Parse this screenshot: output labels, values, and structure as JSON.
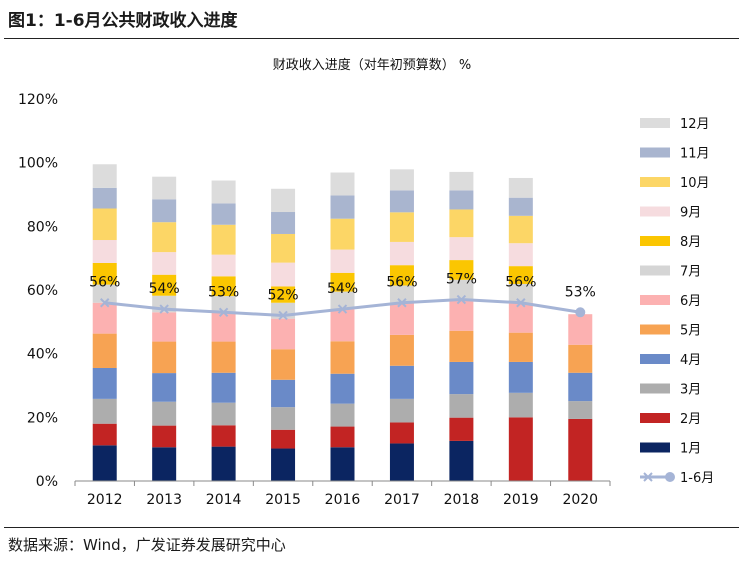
{
  "figure_title": "图1：1-6月公共财政收入进度",
  "source_note": "数据来源：Wind，广发证券发展研究中心",
  "chart_data": {
    "type": "bar",
    "stacked": true,
    "title": "财政收入进度（对年初预算数） %",
    "categories": [
      "2012",
      "2013",
      "2014",
      "2015",
      "2016",
      "2017",
      "2018",
      "2019",
      "2020"
    ],
    "ylim": [
      0,
      120
    ],
    "yticks": [
      "0%",
      "20%",
      "40%",
      "60%",
      "80%",
      "100%",
      "120%"
    ],
    "grid": false,
    "legend_position": "right",
    "series": [
      {
        "name": "1月",
        "color": "#0b2561",
        "values": [
          11.2,
          10.6,
          10.8,
          10.2,
          10.6,
          11.8,
          12.6,
          0,
          0
        ]
      },
      {
        "name": "2月",
        "color": "#c22423",
        "values": [
          6.8,
          6.8,
          6.7,
          5.9,
          6.5,
          6.6,
          7.3,
          20.0,
          19.5
        ]
      },
      {
        "name": "3月",
        "color": "#adadad",
        "values": [
          7.8,
          7.5,
          7.1,
          7.1,
          7.2,
          7.4,
          7.4,
          7.7,
          5.6
        ]
      },
      {
        "name": "4月",
        "color": "#6a8ac8",
        "values": [
          9.7,
          9.0,
          9.4,
          8.6,
          9.4,
          10.4,
          10.1,
          9.7,
          8.9
        ]
      },
      {
        "name": "5月",
        "color": "#f7a353",
        "values": [
          10.8,
          9.9,
          9.8,
          9.6,
          10.2,
          9.7,
          9.8,
          9.2,
          8.8
        ]
      },
      {
        "name": "6月",
        "color": "#fcb1b1",
        "values": [
          9.7,
          9.2,
          9.2,
          9.6,
          10.1,
          10.1,
          9.8,
          9.4,
          9.6
        ]
      },
      {
        "name": "7月",
        "color": "#d5d5d5",
        "values": [
          5.7,
          5.2,
          5.1,
          5.0,
          5.5,
          5.4,
          6.2,
          5.9,
          0
        ]
      },
      {
        "name": "8月",
        "color": "#fbc601",
        "values": [
          6.8,
          6.6,
          6.2,
          5.1,
          5.9,
          6.4,
          6.2,
          5.6,
          0
        ]
      },
      {
        "name": "9月",
        "color": "#f6dcdf",
        "values": [
          7.2,
          7.1,
          6.8,
          7.5,
          7.3,
          7.3,
          7.2,
          7.2,
          0
        ]
      },
      {
        "name": "10月",
        "color": "#fcd666",
        "values": [
          9.9,
          9.4,
          9.4,
          9.0,
          9.7,
          9.3,
          8.7,
          8.6,
          0
        ]
      },
      {
        "name": "11月",
        "color": "#a9b5cf",
        "values": [
          6.5,
          7.2,
          6.7,
          6.9,
          7.3,
          6.9,
          6.0,
          5.7,
          0
        ]
      },
      {
        "name": "12月",
        "color": "#dcdcdc",
        "values": [
          7.4,
          7.1,
          7.2,
          7.3,
          7.2,
          6.6,
          5.8,
          6.2,
          0
        ]
      }
    ],
    "line_series": {
      "name": "1-6月",
      "color": "#a5b4d6",
      "values": [
        56,
        54,
        53,
        52,
        54,
        56,
        57,
        56,
        53
      ],
      "labels": [
        "56%",
        "54%",
        "53%",
        "52%",
        "54%",
        "56%",
        "57%",
        "56%",
        "53%"
      ]
    }
  }
}
